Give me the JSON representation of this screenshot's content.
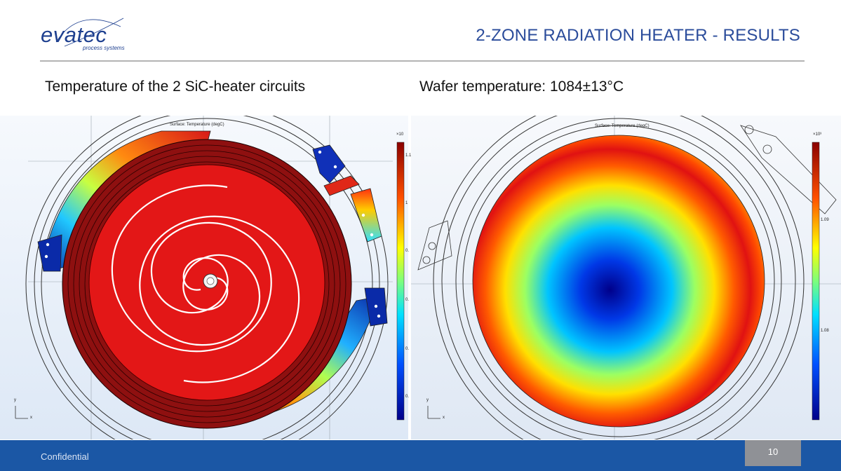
{
  "header": {
    "logo_text": "evatec",
    "logo_subtitle": "process systems",
    "title": "2-ZONE RADIATION HEATER - RESULTS"
  },
  "captions": {
    "left": "Temperature of the 2 SiC-heater circuits",
    "right": "Wafer temperature: 1084±13°C"
  },
  "plots": {
    "left": {
      "plot_title": "Surface: Temperature (degC)",
      "colorbar_exponent": "×10",
      "colorbar_ticks": [
        "1.1",
        "1",
        "0.",
        "0.",
        "0.",
        "0."
      ],
      "axis_y": "y",
      "axis_x": "x"
    },
    "right": {
      "plot_title": "Surface: Temperature (degC)",
      "colorbar_exponent": "×10³",
      "colorbar_ticks": [
        "1.09",
        "1.08"
      ],
      "axis_y": "y",
      "axis_x": "x"
    }
  },
  "footer": {
    "confidential": "Confidential",
    "page_number": "10"
  },
  "colors": {
    "brand_blue": "#1d3f8f",
    "title_blue": "#2b4c9b",
    "footer_blue": "#1b57a5",
    "page_box_gray": "#8f9196"
  }
}
